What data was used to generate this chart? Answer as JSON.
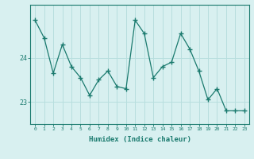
{
  "x": [
    0,
    1,
    2,
    3,
    4,
    5,
    6,
    7,
    8,
    9,
    10,
    11,
    12,
    13,
    14,
    15,
    16,
    17,
    18,
    19,
    20,
    21,
    22,
    23
  ],
  "y": [
    24.85,
    24.45,
    23.65,
    24.3,
    23.8,
    23.55,
    23.15,
    23.5,
    23.7,
    23.35,
    23.3,
    24.85,
    24.55,
    23.55,
    23.8,
    23.9,
    24.55,
    24.2,
    23.7,
    23.05,
    23.3,
    22.8,
    22.8,
    22.8
  ],
  "xlabel": "Humidex (Indice chaleur)",
  "yticks": [
    23,
    24
  ],
  "ylim": [
    22.5,
    25.2
  ],
  "xlim": [
    -0.5,
    23.5
  ],
  "line_color": "#1a7a6e",
  "marker_color": "#1a7a6e",
  "bg_color": "#d8f0f0",
  "grid_color": "#b8dede",
  "axis_color": "#1a7a6e",
  "label_color": "#1a7a6e",
  "tick_color": "#1a7a6e"
}
